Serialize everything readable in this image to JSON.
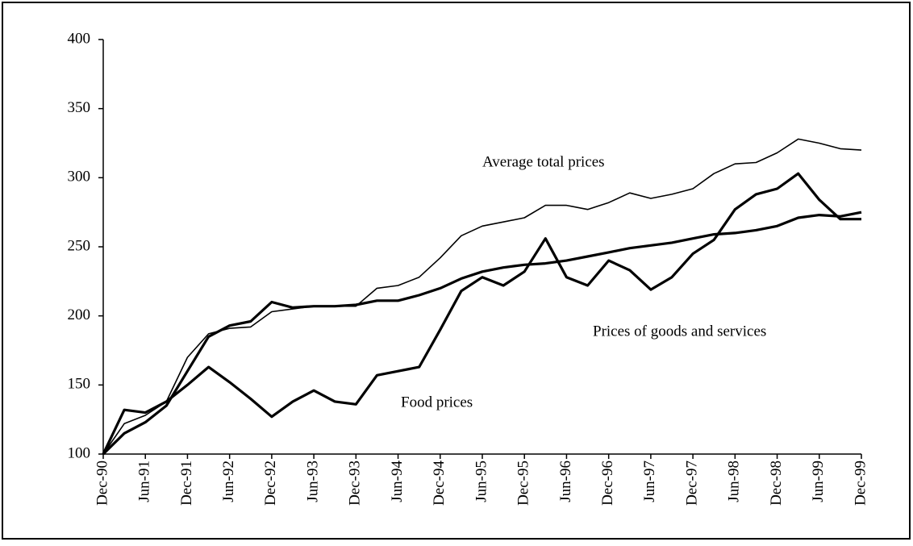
{
  "chart_data": {
    "type": "line",
    "categories": [
      "Dec-90",
      null,
      "Jun-91",
      null,
      "Dec-91",
      null,
      "Jun-92",
      null,
      "Dec-92",
      null,
      "Jun-93",
      null,
      "Dec-93",
      null,
      "Jun-94",
      null,
      "Dec-94",
      null,
      "Jun-95",
      null,
      "Dec-95",
      null,
      "Jun-96",
      null,
      "Dec-96",
      null,
      "Jun-97",
      null,
      "Dec-97",
      null,
      "Jun-98",
      null,
      "Dec-98",
      null,
      "Jun-99",
      null,
      "Dec-99"
    ],
    "series": [
      {
        "name": "Average total prices",
        "color": "#000000",
        "values": [
          100,
          122,
          128,
          138,
          170,
          187,
          191,
          192,
          203,
          205,
          207,
          207,
          207,
          220,
          222,
          228,
          242,
          258,
          265,
          268,
          271,
          280,
          280,
          277,
          282,
          289,
          285,
          288,
          292,
          303,
          310,
          311,
          318,
          328,
          325,
          321,
          320
        ]
      },
      {
        "name": "Prices of goods and services",
        "color": "#000000",
        "values": [
          100,
          115,
          123,
          135,
          160,
          185,
          193,
          196,
          210,
          206,
          207,
          207,
          208,
          211,
          211,
          215,
          220,
          227,
          232,
          235,
          237,
          238,
          240,
          243,
          246,
          249,
          251,
          253,
          256,
          259,
          260,
          262,
          265,
          271,
          273,
          272,
          275
        ]
      },
      {
        "name": "Food prices",
        "color": "#000000",
        "values": [
          100,
          132,
          130,
          138,
          150,
          163,
          152,
          140,
          127,
          138,
          146,
          138,
          136,
          157,
          160,
          163,
          190,
          218,
          228,
          222,
          232,
          256,
          228,
          222,
          240,
          233,
          219,
          228,
          245,
          255,
          277,
          288,
          292,
          303,
          284,
          270,
          270
        ]
      }
    ],
    "ylim": [
      100,
      400
    ],
    "yticks": [
      100,
      150,
      200,
      250,
      300,
      350,
      400
    ],
    "grid": false
  }
}
